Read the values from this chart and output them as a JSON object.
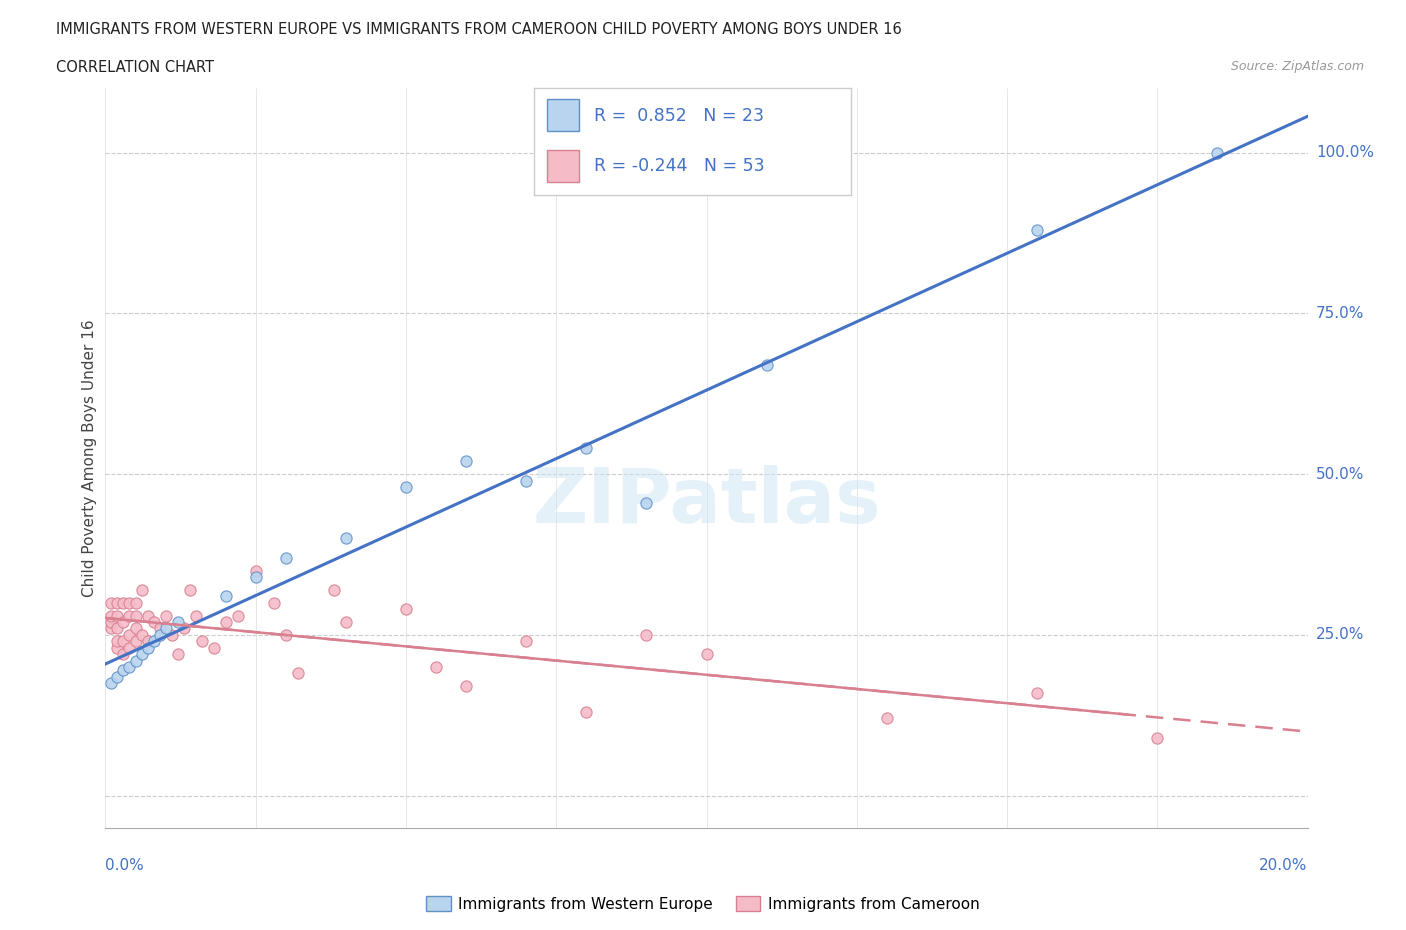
{
  "title_line1": "IMMIGRANTS FROM WESTERN EUROPE VS IMMIGRANTS FROM CAMEROON CHILD POVERTY AMONG BOYS UNDER 16",
  "title_line2": "CORRELATION CHART",
  "source": "Source: ZipAtlas.com",
  "ylabel": "Child Poverty Among Boys Under 16",
  "r_western": 0.852,
  "n_western": 23,
  "r_cameroon": -0.244,
  "n_cameroon": 53,
  "western_color": "#b8d4ee",
  "western_edge": "#6090c8",
  "cameroon_color": "#f5bcc8",
  "cameroon_edge": "#d88090",
  "western_line_color": "#4472c4",
  "blue_text": "#4472c4",
  "western_europe_x": [
    0.001,
    0.002,
    0.003,
    0.004,
    0.005,
    0.006,
    0.007,
    0.008,
    0.009,
    0.01,
    0.012,
    0.02,
    0.025,
    0.03,
    0.04,
    0.05,
    0.06,
    0.07,
    0.08,
    0.09,
    0.11,
    0.155,
    0.185
  ],
  "western_europe_y": [
    0.175,
    0.185,
    0.195,
    0.2,
    0.21,
    0.22,
    0.23,
    0.24,
    0.25,
    0.26,
    0.27,
    0.31,
    0.34,
    0.37,
    0.4,
    0.48,
    0.52,
    0.49,
    0.54,
    0.455,
    0.67,
    0.88,
    1.0
  ],
  "cameroon_x": [
    0.001,
    0.001,
    0.001,
    0.001,
    0.002,
    0.002,
    0.002,
    0.002,
    0.002,
    0.003,
    0.003,
    0.003,
    0.003,
    0.004,
    0.004,
    0.004,
    0.004,
    0.005,
    0.005,
    0.005,
    0.005,
    0.006,
    0.006,
    0.007,
    0.007,
    0.008,
    0.009,
    0.01,
    0.011,
    0.012,
    0.013,
    0.014,
    0.015,
    0.016,
    0.018,
    0.02,
    0.022,
    0.025,
    0.028,
    0.03,
    0.032,
    0.038,
    0.04,
    0.05,
    0.055,
    0.06,
    0.07,
    0.08,
    0.09,
    0.1,
    0.13,
    0.155,
    0.175
  ],
  "cameroon_y": [
    0.26,
    0.27,
    0.28,
    0.3,
    0.23,
    0.24,
    0.26,
    0.28,
    0.3,
    0.22,
    0.24,
    0.27,
    0.3,
    0.23,
    0.25,
    0.28,
    0.3,
    0.24,
    0.26,
    0.28,
    0.3,
    0.25,
    0.32,
    0.24,
    0.28,
    0.27,
    0.26,
    0.28,
    0.25,
    0.22,
    0.26,
    0.32,
    0.28,
    0.24,
    0.23,
    0.27,
    0.28,
    0.35,
    0.3,
    0.25,
    0.19,
    0.32,
    0.27,
    0.29,
    0.2,
    0.17,
    0.24,
    0.13,
    0.25,
    0.22,
    0.12,
    0.16,
    0.09
  ],
  "ytick_vals": [
    0.0,
    0.25,
    0.5,
    0.75,
    1.0
  ],
  "ytick_labels": [
    "",
    "25.0%",
    "50.0%",
    "75.0%",
    "100.0%"
  ],
  "xlim": [
    0.0,
    0.2
  ],
  "ylim": [
    -0.05,
    1.1
  ]
}
